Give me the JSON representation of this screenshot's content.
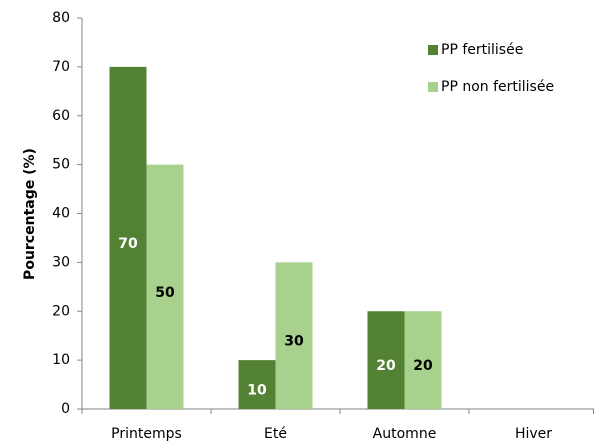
{
  "chart_data": {
    "type": "bar",
    "y_label": "Pourcentage (%)",
    "categories": [
      "Printemps",
      "Eté",
      "Automne",
      "Hiver"
    ],
    "series": [
      {
        "name": "PP fertilisée",
        "color": "#548235",
        "label_color": "#ffffff",
        "values": [
          70,
          10,
          20,
          null
        ]
      },
      {
        "name": "PP non fertilisée",
        "color": "#a9d18e",
        "label_color": "#000000",
        "values": [
          50,
          30,
          20,
          null
        ]
      }
    ],
    "ylim": [
      0,
      80
    ],
    "yticks": [
      0,
      10,
      20,
      30,
      40,
      50,
      60,
      70,
      80
    ],
    "grid": false,
    "legend": "top-right"
  }
}
